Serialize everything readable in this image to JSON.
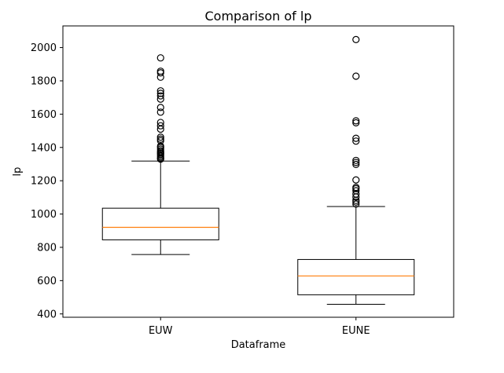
{
  "chart_data": {
    "type": "box",
    "title": "Comparison of lp",
    "xlabel": "Dataframe",
    "ylabel": "lp",
    "ylim": [
      380,
      2130
    ],
    "yticks": [
      400,
      600,
      800,
      1000,
      1200,
      1400,
      1600,
      1800,
      2000
    ],
    "grid": false,
    "categories": [
      "EUW",
      "EUNE"
    ],
    "series": [
      {
        "category": "EUW",
        "whisker_low": 757,
        "q1": 845,
        "median": 920,
        "q3": 1035,
        "whisker_high": 1318,
        "outliers": [
          1330,
          1335,
          1342,
          1350,
          1358,
          1365,
          1372,
          1380,
          1390,
          1400,
          1408,
          1440,
          1450,
          1462,
          1510,
          1530,
          1550,
          1612,
          1640,
          1690,
          1710,
          1725,
          1740,
          1822,
          1848,
          1858,
          1938
        ]
      },
      {
        "category": "EUNE",
        "whisker_low": 458,
        "q1": 515,
        "median": 628,
        "q3": 727,
        "whisker_high": 1045,
        "outliers": [
          1060,
          1072,
          1082,
          1102,
          1120,
          1140,
          1152,
          1160,
          1205,
          1298,
          1310,
          1322,
          1438,
          1455,
          1548,
          1560,
          1828,
          2048
        ]
      }
    ],
    "colors": {
      "box": "#000000",
      "median": "#ff7f0e",
      "outlier": "#000000"
    }
  }
}
